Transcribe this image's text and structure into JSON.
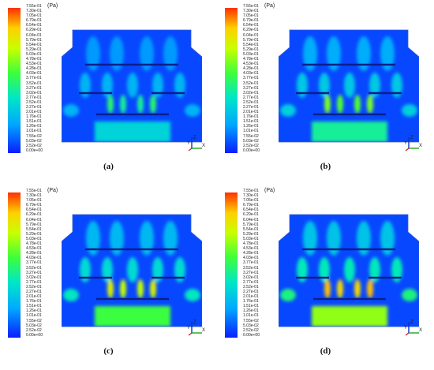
{
  "unit": "(Pa)",
  "ticks": [
    "7.55e-01",
    "7.30e-01",
    "7.05e-01",
    "6.79e-01",
    "6.54e-01",
    "6.29e-01",
    "6.04e-01",
    "5.79e-01",
    "5.54e-01",
    "5.29e-01",
    "5.03e-01",
    "4.78e-01",
    "4.53e-01",
    "4.28e-01",
    "4.03e-01",
    "3.77e-01",
    "3.52e-01",
    "3.27e-01",
    "3.02e-01",
    "2.77e-01",
    "2.52e-01",
    "2.27e-01",
    "2.01e-01",
    "1.76e-01",
    "1.51e-01",
    "1.26e-01",
    "1.01e-01",
    "7.55e-02",
    "5.03e-02",
    "2.52e-02",
    "0.00e+00"
  ],
  "axes": {
    "vertical": "Z",
    "horizontal": "X",
    "depth": "Y"
  },
  "panels": [
    {
      "id": "a",
      "caption": "(a)",
      "intensity": 0.25
    },
    {
      "id": "b",
      "caption": "(b)",
      "intensity": 0.5
    },
    {
      "id": "c",
      "caption": "(c)",
      "intensity": 0.75
    },
    {
      "id": "d",
      "caption": "(d)",
      "intensity": 1.0
    }
  ],
  "colors": {
    "scale": [
      "#0a1eff",
      "#00a8ff",
      "#00e6c8",
      "#3cff3c",
      "#c8ff00",
      "#ffd000",
      "#ff3000"
    ],
    "background": "#0b5fd8"
  }
}
